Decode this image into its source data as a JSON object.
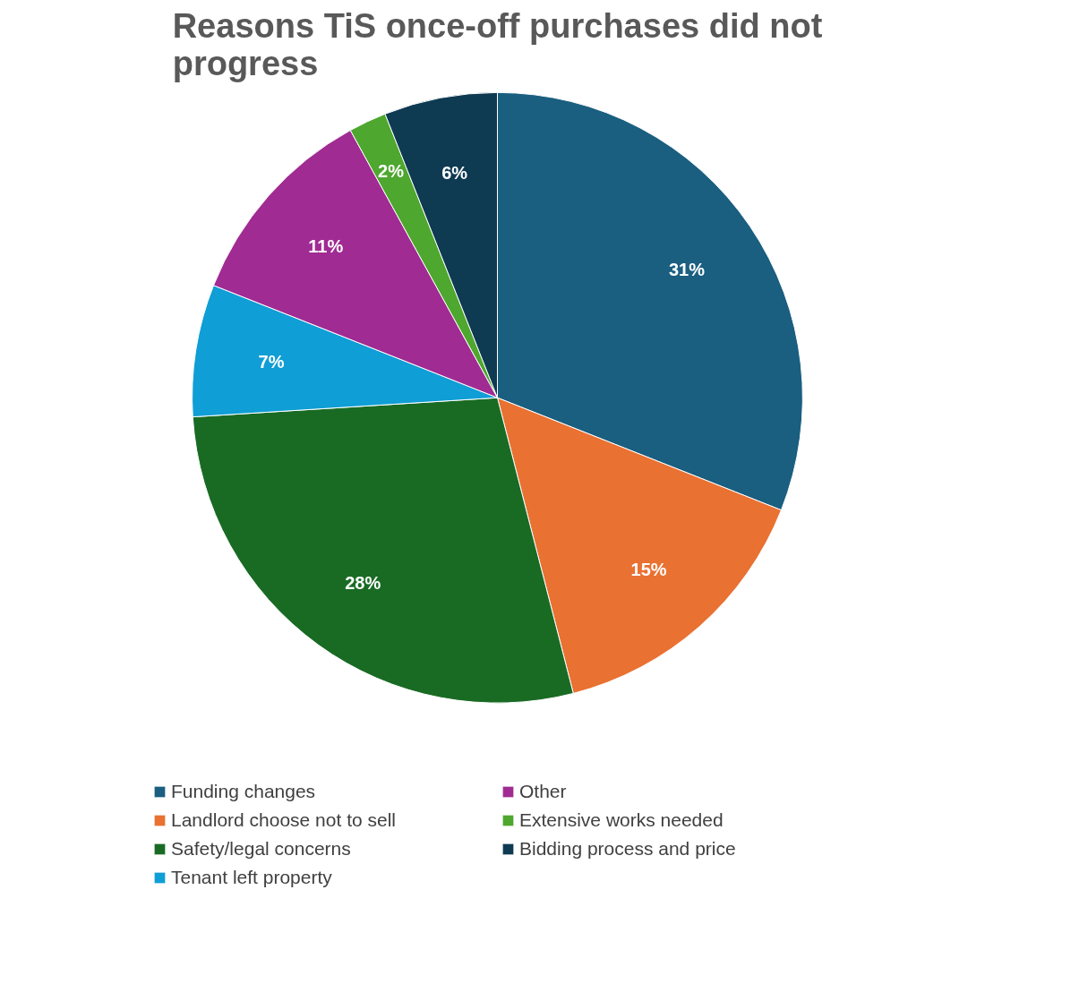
{
  "chart_data": {
    "type": "pie",
    "title": "Reasons TiS once-off purchases did not progress",
    "categories": [
      "Funding changes",
      "Landlord choose not to sell",
      "Safety/legal concerns",
      "Tenant left property",
      "Other",
      "Extensive works needed",
      "Bidding process and price"
    ],
    "values": [
      31,
      15,
      28,
      7,
      11,
      2,
      6
    ],
    "colors": [
      "#1a5e80",
      "#e97132",
      "#196b24",
      "#0f9ed5",
      "#a02b93",
      "#4ea72e",
      "#0e3a52"
    ],
    "value_labels": [
      "31%",
      "15%",
      "28%",
      "7%",
      "11%",
      "2%",
      "6%"
    ],
    "legend": "bottom"
  }
}
